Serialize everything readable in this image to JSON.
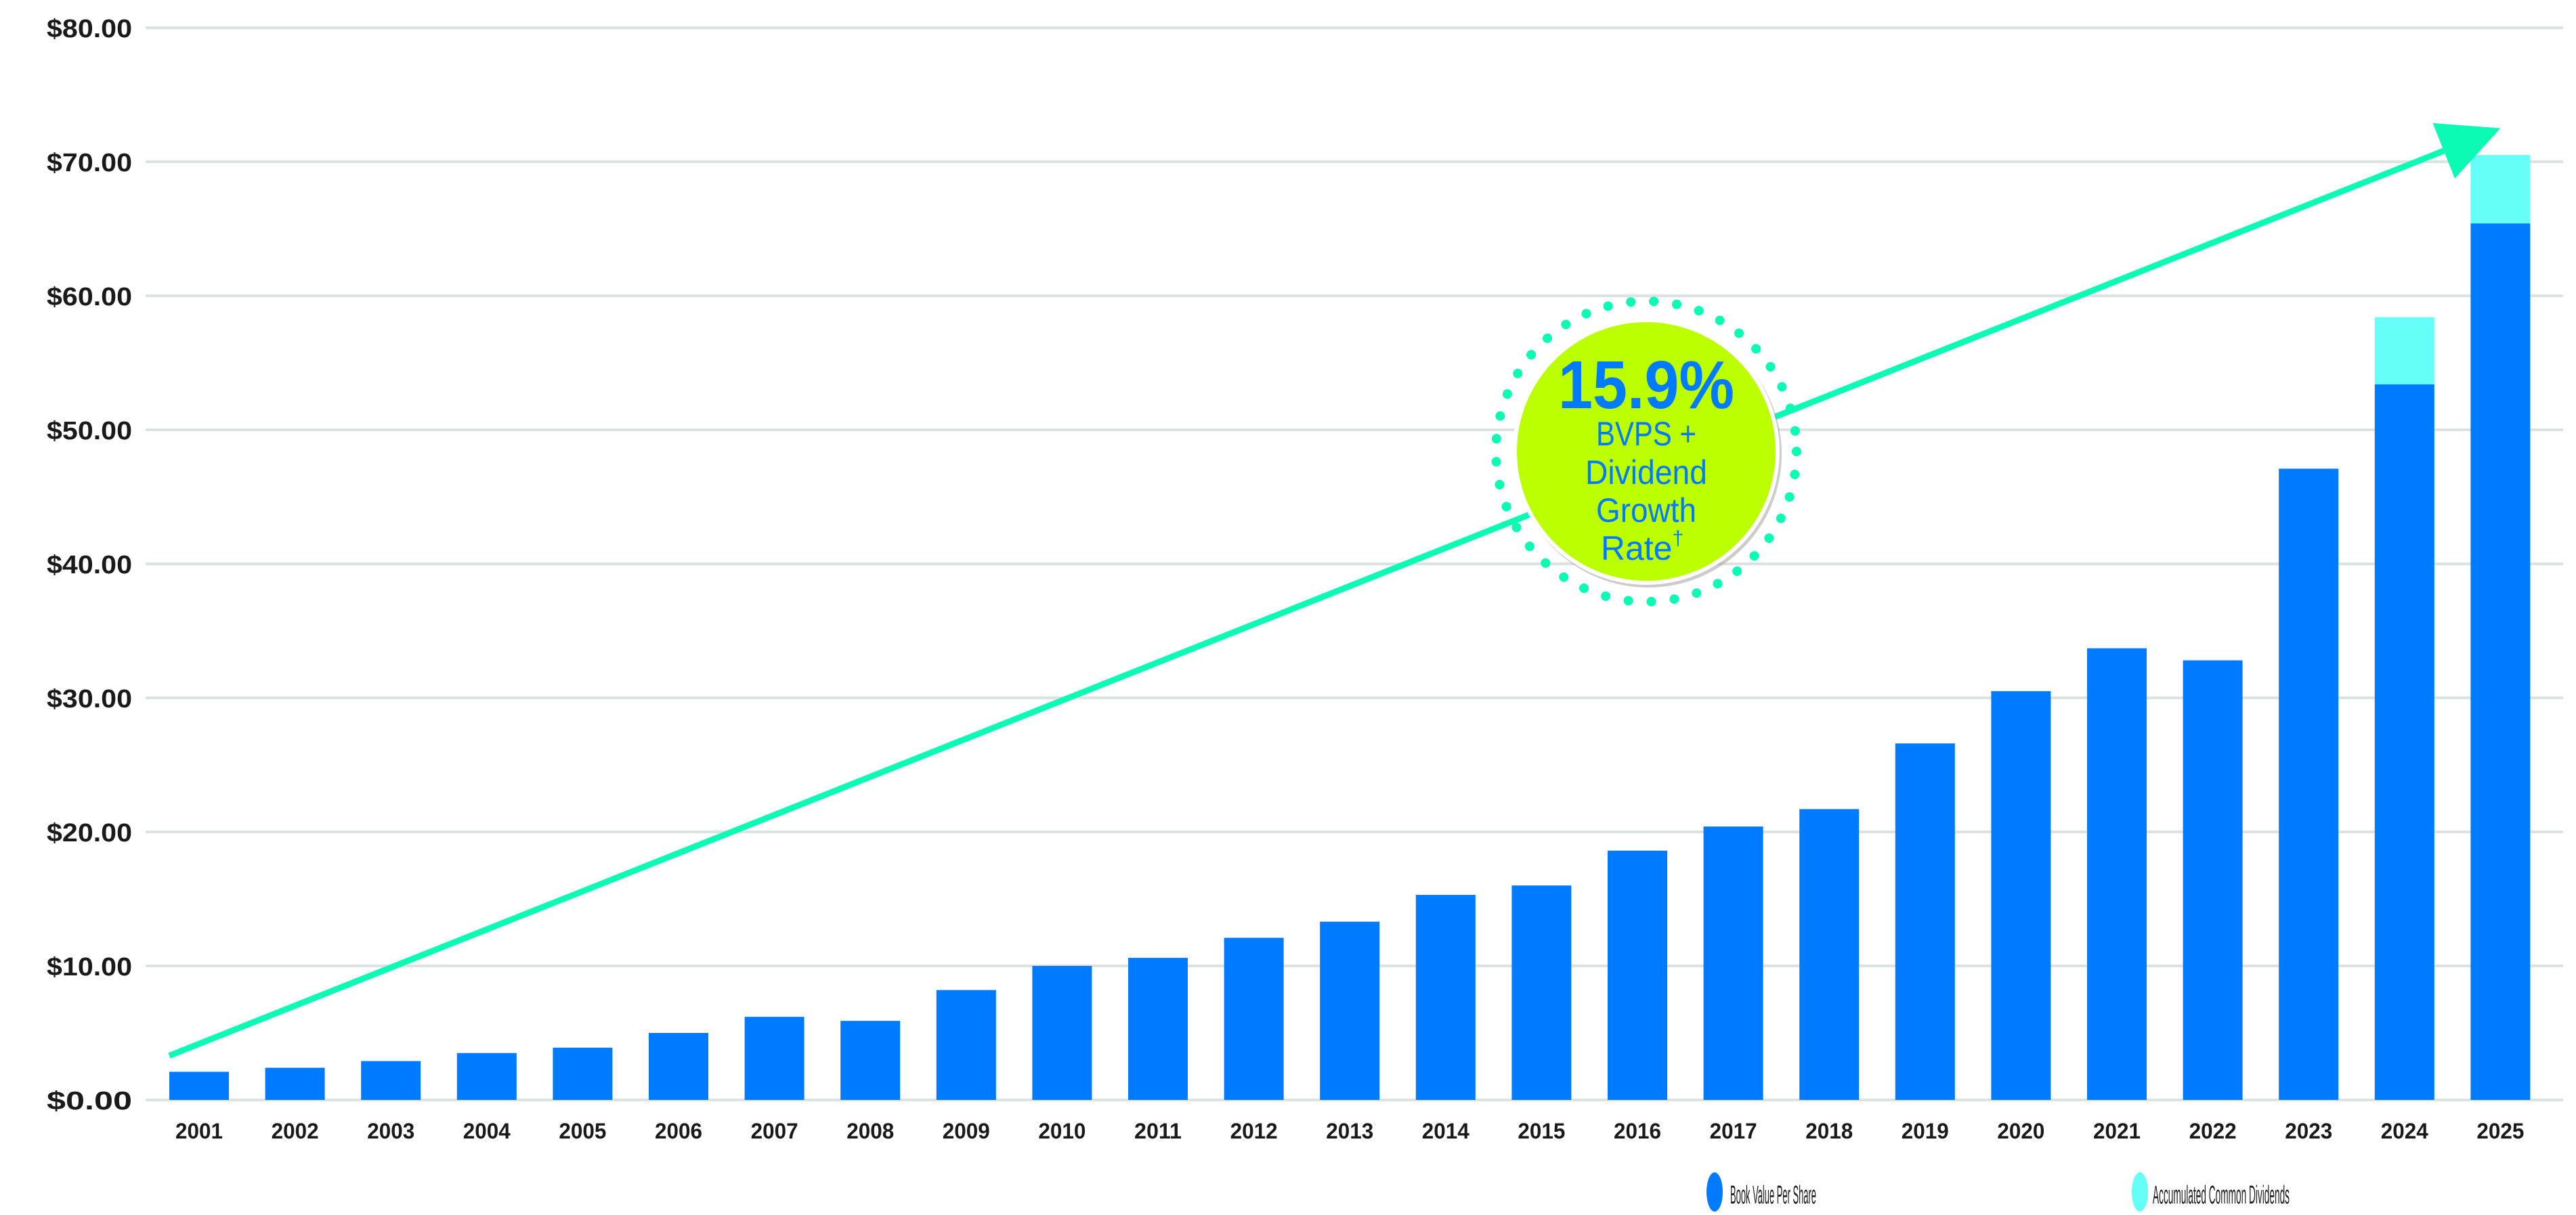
{
  "chart_data": {
    "type": "bar",
    "stacked": true,
    "categories": [
      "2001",
      "2002",
      "2003",
      "2004",
      "2005",
      "2006",
      "2007",
      "2008",
      "2009",
      "2010",
      "2011",
      "2012",
      "2013",
      "2014",
      "2015",
      "2016",
      "2017",
      "2018",
      "2019",
      "2020",
      "2021",
      "2022",
      "2023",
      "2024",
      "2025"
    ],
    "series": [
      {
        "name": "Book Value Per Share",
        "color": "#007BFF",
        "values": [
          2.1,
          2.4,
          2.9,
          3.5,
          3.9,
          5.0,
          6.2,
          5.9,
          8.2,
          10.0,
          10.6,
          12.1,
          13.3,
          15.3,
          16.0,
          18.6,
          20.4,
          21.7,
          26.6,
          30.5,
          33.7,
          32.8,
          47.1,
          53.4,
          65.4
        ]
      },
      {
        "name": "Accumulated Common Dividends",
        "color": "#66FFF8",
        "values": [
          0,
          0,
          0,
          0,
          0,
          0,
          0,
          0,
          0,
          0,
          0,
          0,
          0,
          0,
          0,
          0,
          0,
          0,
          0,
          0,
          0,
          0,
          0,
          5.0,
          5.1
        ]
      }
    ],
    "ylim": [
      0,
      80
    ],
    "yticks": [
      0,
      10,
      20,
      30,
      40,
      50,
      60,
      70,
      80
    ],
    "ytick_labels": [
      "$0.00",
      "$10.00",
      "$20.00",
      "$30.00",
      "$40.00",
      "$50.00",
      "$60.00",
      "$70.00",
      "$80.00"
    ],
    "grid": true,
    "legend_placement": "bottom-right",
    "trend_arrow": {
      "color": "#0CFBB4",
      "from": {
        "x": "2001",
        "y": 3.3
      },
      "to": {
        "x": "2025",
        "y": 72.5
      }
    },
    "annotation": {
      "value": "15.9%",
      "lines": [
        "BVPS +",
        "Dividend",
        "Growth",
        "Rate"
      ],
      "superscript": "†",
      "fill": "#BBFF00",
      "text_color": "#007BFF",
      "ring_color": "#0CFBB4"
    }
  }
}
